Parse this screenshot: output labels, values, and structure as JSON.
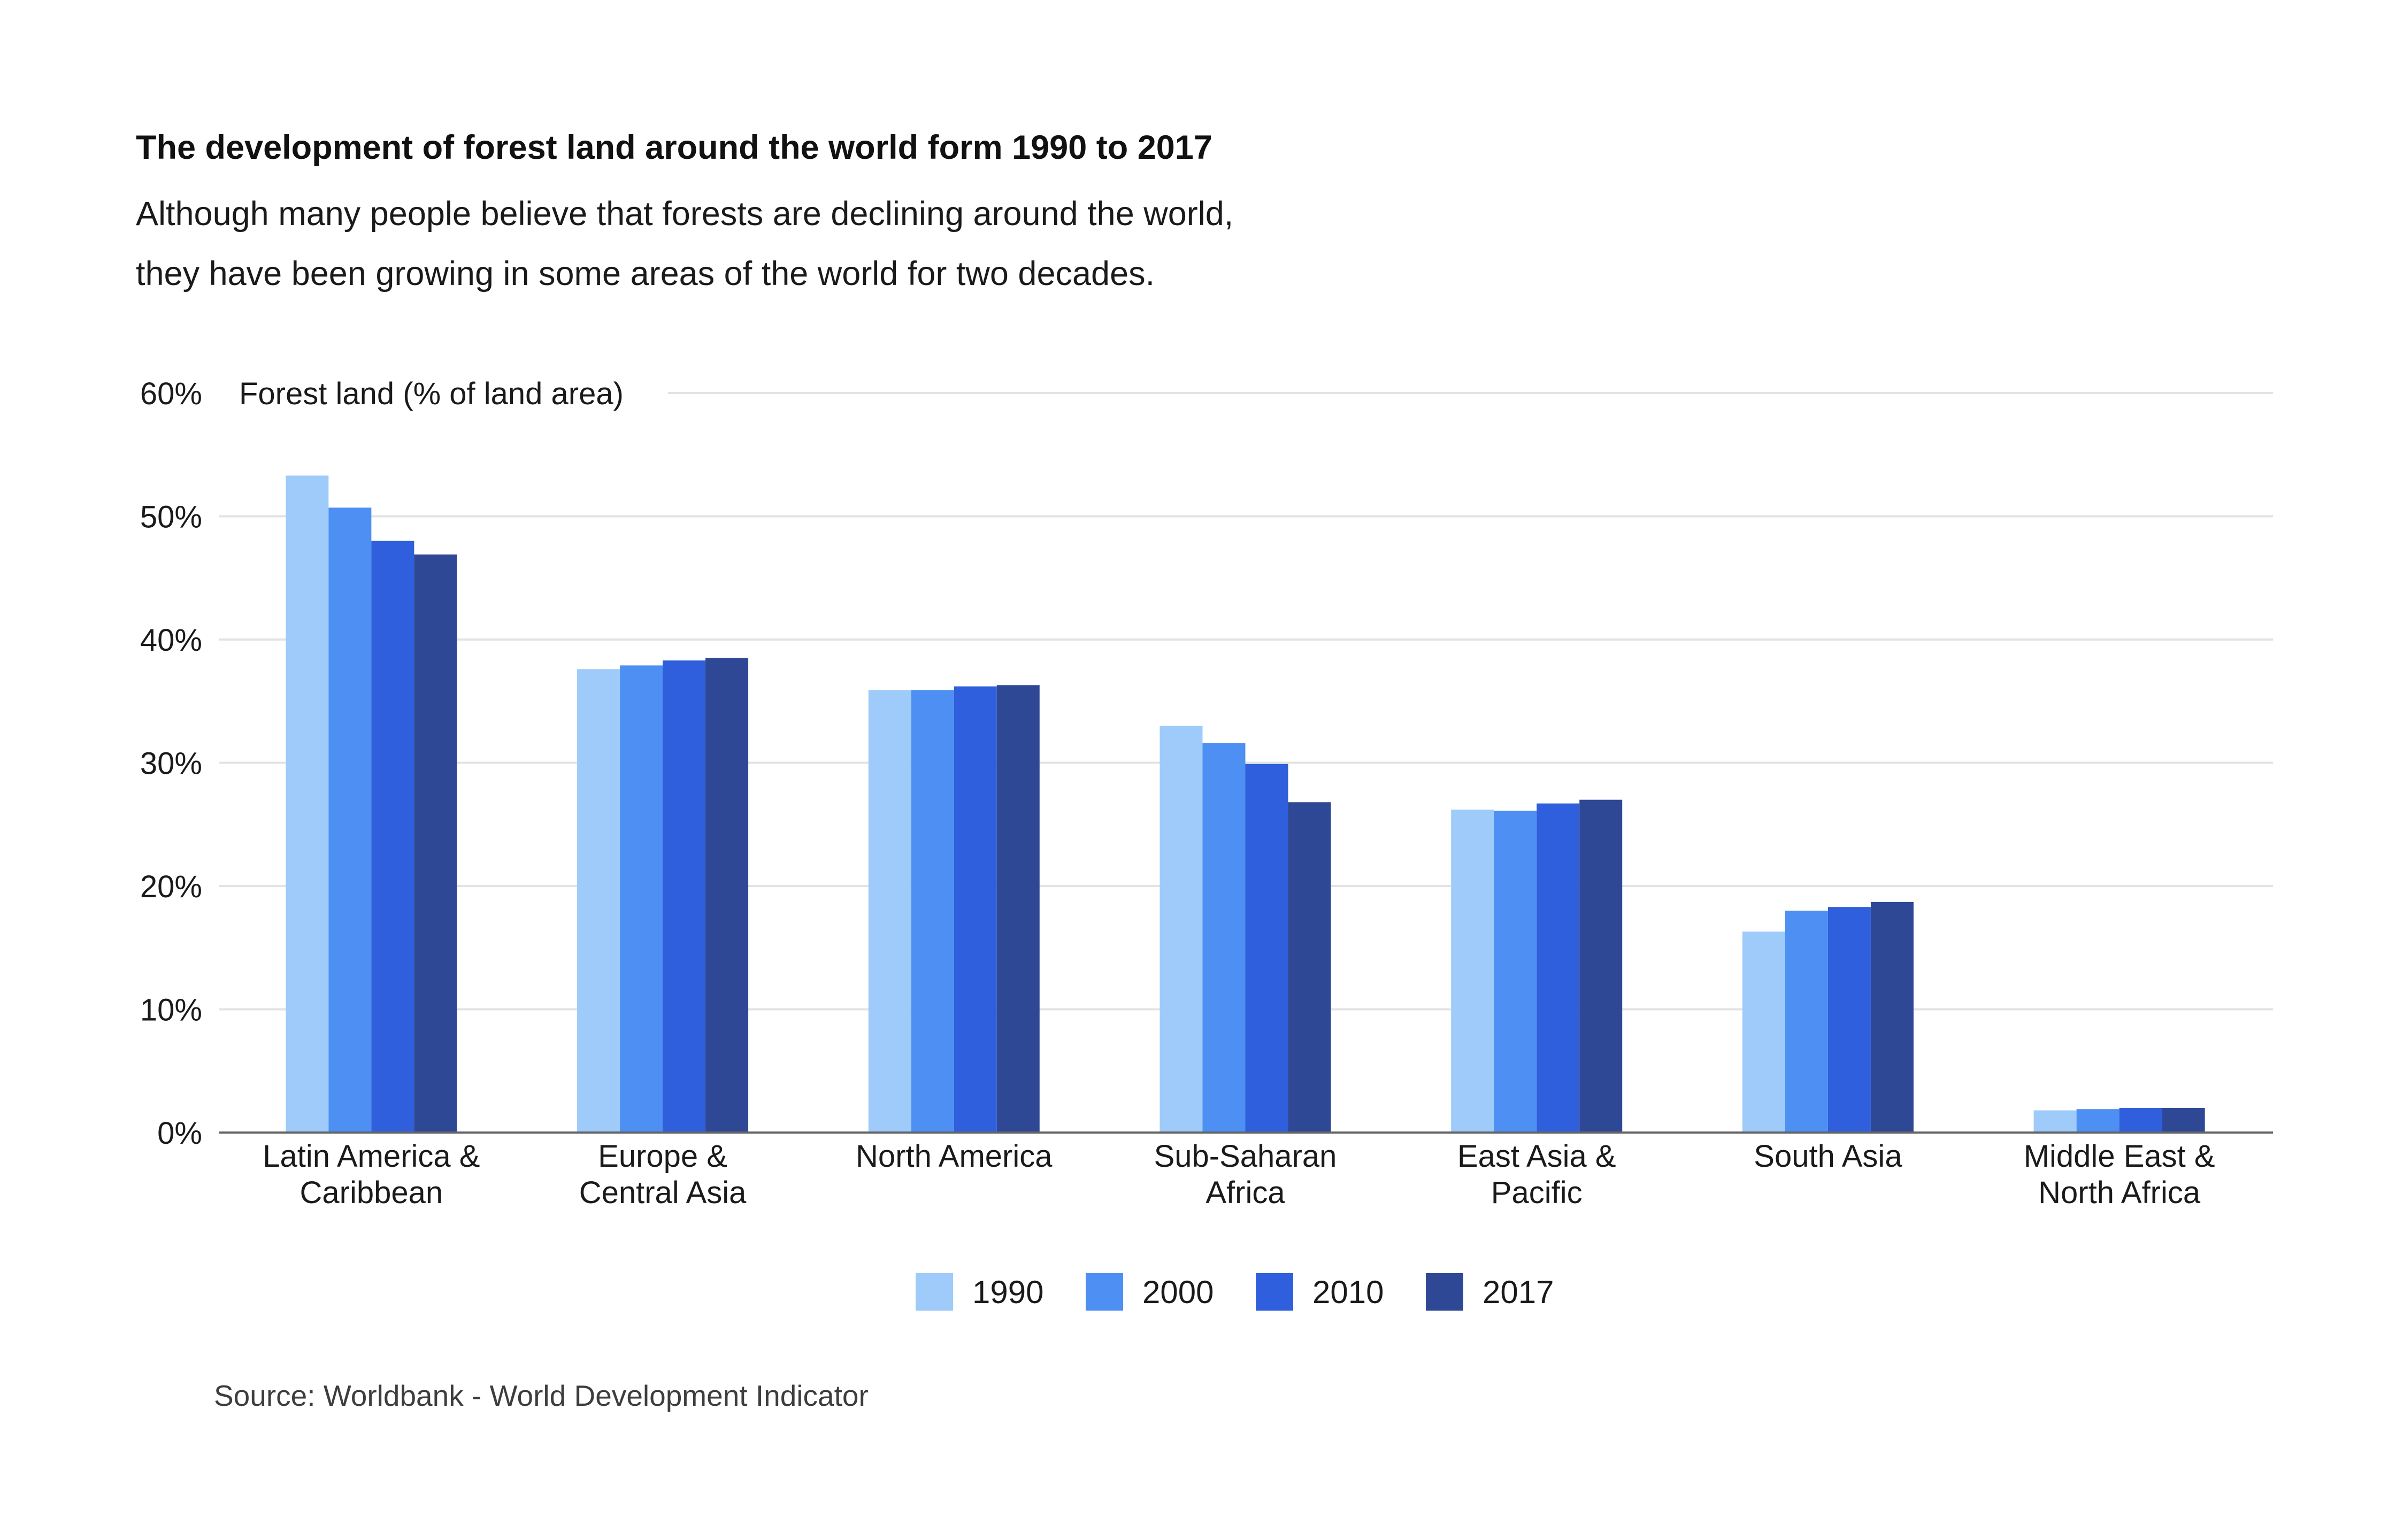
{
  "title": "The development of forest land around the world form 1990 to 2017",
  "subtitle_lines": [
    "Although many people believe that forests are declining around the world,",
    "they have been growing in some areas of the world for two decades."
  ],
  "source": "Source: Worldbank - World Development Indicator",
  "chart_data": {
    "type": "bar",
    "ylabel": "Forest land (% of land area)",
    "ylim": [
      0,
      60
    ],
    "yticks": [
      0,
      10,
      20,
      30,
      40,
      50,
      60
    ],
    "ytick_labels": [
      "0%",
      "10%",
      "20%",
      "30%",
      "40%",
      "50%",
      "60%"
    ],
    "grid": true,
    "legend_position": "bottom",
    "categories": [
      [
        "Latin America &",
        "Caribbean"
      ],
      [
        "Europe &",
        "Central Asia"
      ],
      [
        "North America"
      ],
      [
        "Sub-Saharan",
        "Africa"
      ],
      [
        "East Asia &",
        "Pacific"
      ],
      [
        "South Asia"
      ],
      [
        "Middle East &",
        "North Africa"
      ]
    ],
    "series": [
      {
        "name": "1990",
        "color": "#9ecbfa",
        "values": [
          53.3,
          37.6,
          35.9,
          33.0,
          26.2,
          16.3,
          1.8
        ]
      },
      {
        "name": "2000",
        "color": "#4d8ff2",
        "values": [
          50.7,
          37.9,
          35.9,
          31.6,
          26.1,
          18.0,
          1.9
        ]
      },
      {
        "name": "2010",
        "color": "#2f5fdc",
        "values": [
          48.0,
          38.3,
          36.2,
          29.9,
          26.7,
          18.3,
          2.0
        ]
      },
      {
        "name": "2017",
        "color": "#2e4895",
        "values": [
          46.9,
          38.5,
          36.3,
          26.8,
          27.0,
          18.7,
          2.0
        ]
      }
    ]
  }
}
